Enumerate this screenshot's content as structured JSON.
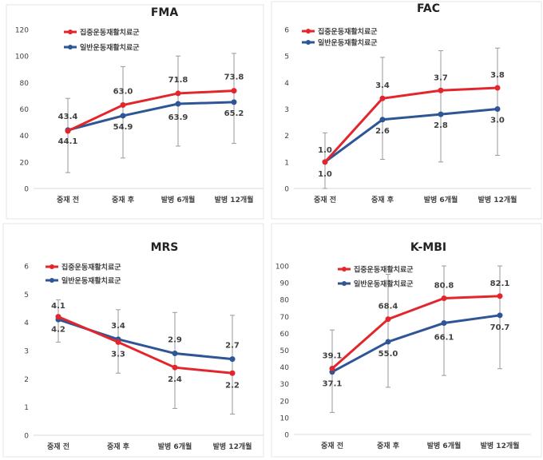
{
  "colors": {
    "series1": "#e3262b",
    "series2": "#2e5596",
    "axis": "#d9d9d9",
    "error": "#9a9a9a",
    "text": "#404040"
  },
  "chart_data": [
    {
      "id": "fma",
      "type": "line",
      "title": "FMA",
      "categories": [
        "중재 전",
        "중재 후",
        "발병 6개월",
        "발병 12개월"
      ],
      "ylim": [
        0,
        120
      ],
      "yticks": [
        0,
        20,
        40,
        60,
        80,
        100,
        120
      ],
      "grid": false,
      "legend_position": "top-left",
      "series": [
        {
          "name": "집중운동재활치료군",
          "values": [
            43.4,
            63.0,
            71.8,
            73.8
          ],
          "labels": [
            "43.4",
            "63.0",
            "71.8",
            "73.8"
          ]
        },
        {
          "name": "일반운동재활치료군",
          "values": [
            44.1,
            54.9,
            63.9,
            65.2
          ],
          "labels": [
            "44.1",
            "54.9",
            "63.9",
            "65.2"
          ]
        }
      ],
      "error_bars": [
        [
          12,
          68
        ],
        [
          23,
          92
        ],
        [
          32,
          100
        ],
        [
          34,
          102
        ]
      ]
    },
    {
      "id": "fac",
      "type": "line",
      "title": "FAC",
      "categories": [
        "중재 전",
        "중재 후",
        "발병 6개월",
        "발병 12개월"
      ],
      "ylim": [
        0,
        6
      ],
      "yticks": [
        0,
        1,
        2,
        3,
        4,
        5,
        6
      ],
      "grid": false,
      "legend_position": "top-left",
      "series": [
        {
          "name": "집중운동재활치료군",
          "values": [
            1.0,
            3.4,
            3.7,
            3.8
          ],
          "labels": [
            "1.0",
            "3.4",
            "3.7",
            "3.8"
          ]
        },
        {
          "name": "일반운동재활치료군",
          "values": [
            1.0,
            2.6,
            2.8,
            3.0
          ],
          "labels": [
            "1.0",
            "2.6",
            "2.8",
            "3.0"
          ]
        }
      ],
      "error_bars": [
        [
          0,
          2.1
        ],
        [
          1.1,
          4.95
        ],
        [
          1.0,
          5.2
        ],
        [
          1.25,
          5.3
        ]
      ]
    },
    {
      "id": "mrs",
      "type": "line",
      "title": "MRS",
      "categories": [
        "중재 전",
        "중재 후",
        "발병 6개월",
        "발병 12개월"
      ],
      "ylim": [
        0,
        6
      ],
      "yticks": [
        0,
        1,
        2,
        3,
        4,
        5,
        6
      ],
      "grid": false,
      "legend_position": "top-left",
      "series": [
        {
          "name": "집중운동재활치료군",
          "values": [
            4.2,
            3.3,
            2.4,
            2.2
          ],
          "labels": [
            "4.2",
            "3.3",
            "2.4",
            "2.2"
          ]
        },
        {
          "name": "일반운동재활치료군",
          "values": [
            4.1,
            3.4,
            2.9,
            2.7
          ],
          "labels": [
            "4.1",
            "3.4",
            "2.9",
            "2.7"
          ]
        }
      ],
      "error_bars": [
        [
          3.3,
          4.8
        ],
        [
          2.2,
          4.45
        ],
        [
          0.95,
          4.35
        ],
        [
          0.75,
          4.25
        ]
      ]
    },
    {
      "id": "kmbi",
      "type": "line",
      "title": "K-MBI",
      "categories": [
        "중재 전",
        "중재 후",
        "발병 6개월",
        "발병 12개월"
      ],
      "ylim": [
        0,
        100
      ],
      "yticks": [
        0,
        10,
        20,
        30,
        40,
        50,
        60,
        70,
        80,
        90,
        100
      ],
      "grid": false,
      "legend_position": "top-left",
      "series": [
        {
          "name": "집중운동재활치료군",
          "values": [
            39.1,
            68.4,
            80.8,
            82.1
          ],
          "labels": [
            "39.1",
            "68.4",
            "80.8",
            "82.1"
          ]
        },
        {
          "name": "일반운동재활치료군",
          "values": [
            37.1,
            55.0,
            66.1,
            70.7
          ],
          "labels": [
            "37.1",
            "55.0",
            "66.1",
            "70.7"
          ]
        }
      ],
      "error_bars": [
        [
          13,
          62
        ],
        [
          28,
          95
        ],
        [
          35,
          100
        ],
        [
          39,
          100
        ]
      ]
    }
  ]
}
